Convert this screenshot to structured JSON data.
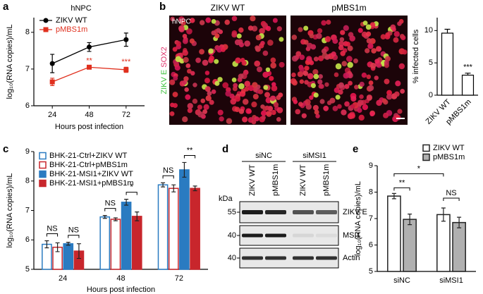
{
  "panel_labels": [
    "a",
    "b",
    "c",
    "d",
    "e"
  ],
  "chart_data": [
    {
      "type": "line",
      "title": "hNPC",
      "x": [
        24,
        48,
        72
      ],
      "xlim": [
        12,
        84
      ],
      "xticks": [
        24,
        48,
        72
      ],
      "ylim": [
        6,
        8.4
      ],
      "yticks": [
        6,
        7,
        8
      ],
      "x_label": "Hours post infection",
      "y_label": "log₁₀(RNA copies)/mL",
      "series": [
        {
          "name": "ZIKV WT",
          "color": "#000000",
          "marker": "circle",
          "values": [
            7.15,
            7.6,
            7.8
          ],
          "errors": [
            0.25,
            0.12,
            0.18
          ]
        },
        {
          "name": "pMBS1m",
          "color": "#e0301e",
          "marker": "square",
          "values": [
            6.65,
            7.05,
            6.98
          ],
          "errors": [
            0.1,
            0.03,
            0.07
          ],
          "annotations": [
            null,
            "**",
            "***"
          ]
        }
      ]
    },
    {
      "type": "bar",
      "categories": [
        "ZIKV WT",
        "pMBS1m"
      ],
      "values": [
        9.6,
        3.1
      ],
      "errors": [
        0.6,
        0.3
      ],
      "ylim": [
        0,
        12
      ],
      "yticks": [
        0,
        5,
        10
      ],
      "y_label": "% infected cells",
      "annotations": [
        null,
        "***"
      ],
      "color": "#ffffff"
    },
    {
      "type": "grouped_bar",
      "categories": [
        "24",
        "48",
        "72"
      ],
      "ylim": [
        5,
        9
      ],
      "yticks": [
        5,
        6,
        7,
        8,
        9
      ],
      "x_label": "Hours post infection",
      "y_label": "log₁₀(RNA copies)/mL",
      "legend": "upper left",
      "series": [
        {
          "name": "BHK-21-Ctrl+ZIKV WT",
          "color": "#2a7bc1",
          "filled": false,
          "values": [
            5.85,
            6.78,
            7.87
          ],
          "errors": [
            0.12,
            0.05,
            0.07
          ]
        },
        {
          "name": "BHK-21-Ctrl+pMBS1m",
          "color": "#c8262c",
          "filled": false,
          "values": [
            5.75,
            6.7,
            7.75
          ],
          "errors": [
            0.15,
            0.05,
            0.12
          ]
        },
        {
          "name": "BHK-21-MSI1+ZIKV WT",
          "color": "#2a7bc1",
          "filled": true,
          "values": [
            5.87,
            7.28,
            8.38
          ],
          "errors": [
            0.05,
            0.1,
            0.25
          ]
        },
        {
          "name": "BHK-21-MSI1+pMBS1m",
          "color": "#c8262c",
          "filled": true,
          "values": [
            5.62,
            6.8,
            7.75
          ],
          "errors": [
            0.25,
            0.15,
            0.08
          ]
        }
      ],
      "annotations": [
        [
          "NS",
          "NS"
        ],
        [
          "NS",
          "*"
        ],
        [
          "NS",
          "**"
        ]
      ]
    },
    {
      "type": "grouped_bar",
      "categories": [
        "siNC",
        "siMSI1"
      ],
      "ylim": [
        5,
        9
      ],
      "yticks": [
        5,
        6,
        7,
        8,
        9
      ],
      "y_label": "log₁₀(RNA copies)/mL",
      "legend": "upper right",
      "series": [
        {
          "name": "ZIKV WT",
          "color": "#ffffff",
          "filled": true,
          "values": [
            7.85,
            7.15
          ],
          "errors": [
            0.1,
            0.25
          ]
        },
        {
          "name": "pMBS1m",
          "color": "#b0b0b0",
          "filled": true,
          "values": [
            6.97,
            6.85
          ],
          "errors": [
            0.2,
            0.2
          ]
        }
      ],
      "annotations": [
        "**",
        "*",
        "NS"
      ]
    }
  ],
  "images": {
    "cell_type": "hNPC",
    "conditions": [
      "ZIKV WT",
      "pMBS1m"
    ],
    "stains": [
      {
        "text": "ZIKV E",
        "color": "#3ec23e"
      },
      {
        "text": "SOX2",
        "color": "#e0306a"
      }
    ]
  },
  "blot": {
    "kda_label": "kDa",
    "groups": [
      "siNC",
      "siMSI1"
    ],
    "lanes": [
      "ZIKV WT",
      "pMBS1m",
      "ZIKV WT",
      "pMBS1m"
    ],
    "bands": [
      {
        "name": "ZIKV E",
        "marker": 55
      },
      {
        "name": "MSI1",
        "marker": 40
      },
      {
        "name": "Actin",
        "marker": 40
      }
    ]
  }
}
